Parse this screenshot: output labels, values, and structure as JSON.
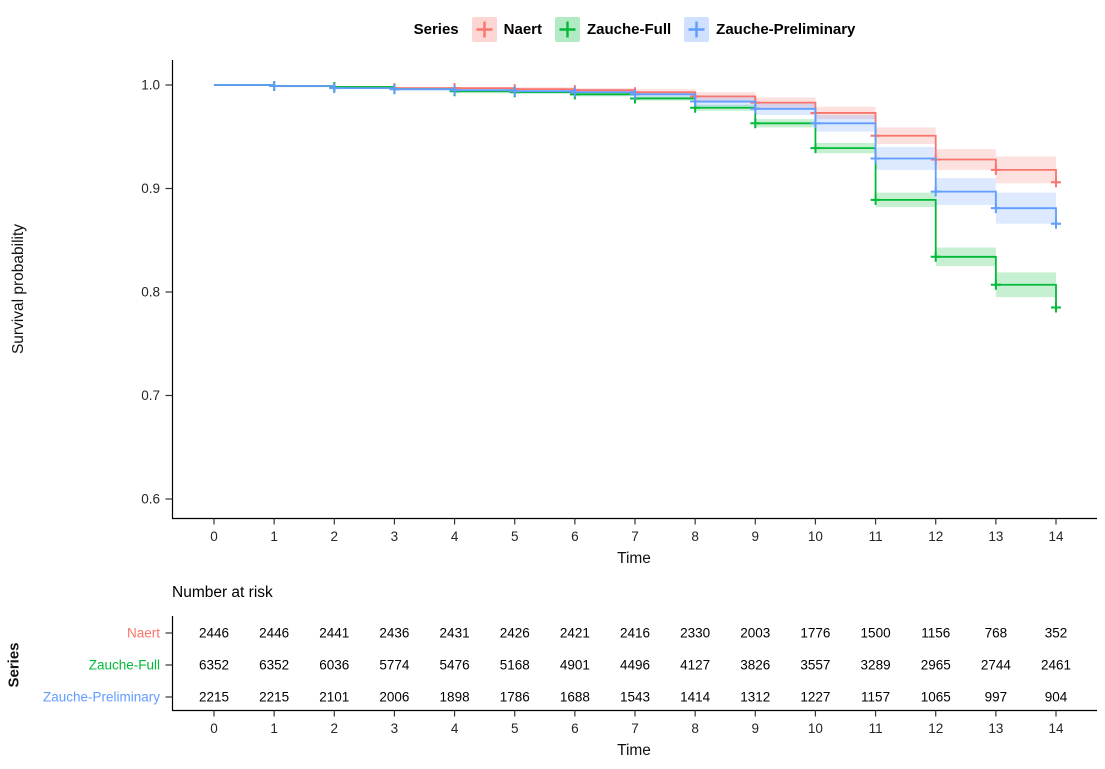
{
  "legend": {
    "title": "Series"
  },
  "main_plot": {
    "y_label": "Survival probability",
    "x_label": "Time"
  },
  "risk_table": {
    "title": "Number at risk",
    "axis_label": "Series",
    "x_label": "Time"
  },
  "chart_data": {
    "type": "line",
    "variant": "kaplan-meier-step-with-ci-ribbons-and-censor-marks",
    "title": "",
    "xlabel": "Time",
    "ylabel": "Survival probability",
    "legend_title": "Series",
    "legend_position": "top",
    "grid": false,
    "xlim": [
      0,
      14
    ],
    "ylim": [
      0.58,
      1.005
    ],
    "x_ticks": [
      0,
      1,
      2,
      3,
      4,
      5,
      6,
      7,
      8,
      9,
      10,
      11,
      12,
      13,
      14
    ],
    "y_ticks": [
      1.0,
      0.9,
      0.8,
      0.7,
      0.6
    ],
    "y_tick_labels": [
      "1.0",
      "0.9",
      "0.8",
      "0.7",
      "0.6"
    ],
    "times": [
      0,
      1,
      2,
      3,
      4,
      5,
      6,
      7,
      8,
      9,
      10,
      11,
      12,
      13,
      14
    ],
    "censor_times": [
      1,
      2,
      3,
      4,
      5,
      6,
      7,
      8,
      9,
      10,
      11,
      12,
      13,
      14
    ],
    "series": [
      {
        "name": "Naert",
        "color": "#F8766D",
        "values": [
          1.0,
          0.999,
          0.998,
          0.997,
          0.997,
          0.996,
          0.995,
          0.993,
          0.989,
          0.983,
          0.973,
          0.951,
          0.928,
          0.918,
          0.906
        ],
        "upper": [
          1.0,
          1.0,
          0.999,
          0.998,
          0.998,
          0.998,
          0.997,
          0.996,
          0.993,
          0.988,
          0.979,
          0.959,
          0.938,
          0.931,
          0.919
        ],
        "lower": [
          1.0,
          0.998,
          0.997,
          0.996,
          0.996,
          0.994,
          0.993,
          0.99,
          0.985,
          0.978,
          0.967,
          0.943,
          0.918,
          0.905,
          0.893
        ],
        "at_risk": [
          2446,
          2446,
          2441,
          2436,
          2431,
          2426,
          2421,
          2416,
          2330,
          2003,
          1776,
          1500,
          1156,
          768,
          352
        ]
      },
      {
        "name": "Zauche-Full",
        "color": "#00BA38",
        "values": [
          1.0,
          0.999,
          0.998,
          0.996,
          0.994,
          0.993,
          0.991,
          0.987,
          0.978,
          0.963,
          0.939,
          0.889,
          0.834,
          0.807,
          0.785
        ],
        "upper": [
          1.0,
          1.0,
          0.999,
          0.997,
          0.996,
          0.994,
          0.993,
          0.989,
          0.981,
          0.967,
          0.944,
          0.896,
          0.843,
          0.819,
          0.797
        ],
        "lower": [
          1.0,
          0.998,
          0.997,
          0.995,
          0.992,
          0.992,
          0.989,
          0.985,
          0.975,
          0.959,
          0.934,
          0.882,
          0.825,
          0.795,
          0.773
        ],
        "at_risk": [
          6352,
          6352,
          6036,
          5774,
          5476,
          5168,
          4901,
          4496,
          4127,
          3826,
          3557,
          3289,
          2965,
          2744,
          2461
        ]
      },
      {
        "name": "Zauche-Preliminary",
        "color": "#619CFF",
        "values": [
          1.0,
          0.999,
          0.997,
          0.996,
          0.995,
          0.994,
          0.993,
          0.991,
          0.984,
          0.977,
          0.963,
          0.929,
          0.897,
          0.881,
          0.866
        ],
        "upper": [
          1.0,
          1.0,
          0.998,
          0.998,
          0.997,
          0.996,
          0.996,
          0.994,
          0.989,
          0.983,
          0.971,
          0.94,
          0.91,
          0.896,
          0.881
        ],
        "lower": [
          1.0,
          0.998,
          0.996,
          0.994,
          0.993,
          0.992,
          0.99,
          0.988,
          0.979,
          0.971,
          0.955,
          0.918,
          0.884,
          0.866,
          0.851
        ],
        "at_risk": [
          2215,
          2215,
          2101,
          2006,
          1898,
          1786,
          1688,
          1543,
          1414,
          1312,
          1227,
          1157,
          1065,
          997,
          904
        ]
      }
    ]
  }
}
